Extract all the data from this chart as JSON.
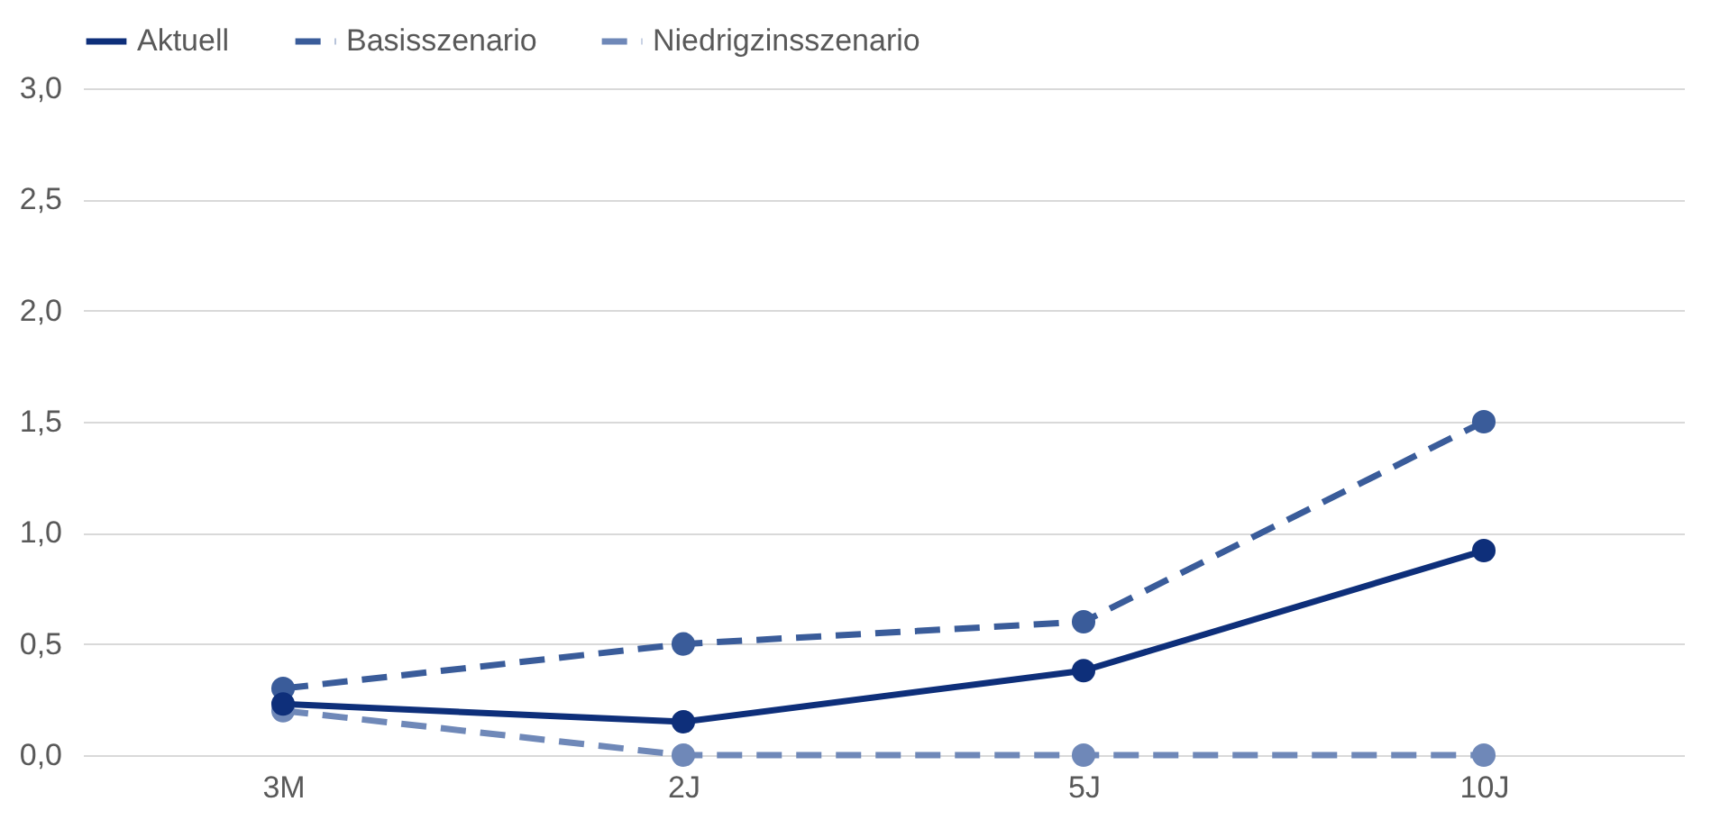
{
  "chart_data": {
    "type": "line",
    "categories": [
      "3M",
      "2J",
      "5J",
      "10J"
    ],
    "series": [
      {
        "name": "Aktuell",
        "color": "#0e2f7a",
        "line_style": "solid",
        "values": [
          0.23,
          0.15,
          0.38,
          0.92
        ]
      },
      {
        "name": "Basisszenario",
        "color": "#3a5c9a",
        "line_style": "dashed",
        "values": [
          0.3,
          0.5,
          0.6,
          1.5
        ]
      },
      {
        "name": "Niedrigzinsszenario",
        "color": "#6f88b8",
        "line_style": "dashed",
        "values": [
          0.2,
          0,
          0,
          0
        ]
      }
    ],
    "ylim": [
      0,
      3
    ],
    "yticks": [
      {
        "value": 0,
        "label": "0,0"
      },
      {
        "value": 0.5,
        "label": "0,5"
      },
      {
        "value": 1,
        "label": "1,0"
      },
      {
        "value": 1.5,
        "label": "1,5"
      },
      {
        "value": 2,
        "label": "2,0"
      },
      {
        "value": 2.5,
        "label": "2,5"
      },
      {
        "value": 3,
        "label": "3,0"
      }
    ],
    "grid": "y",
    "legend": "top",
    "marker": "circle"
  }
}
